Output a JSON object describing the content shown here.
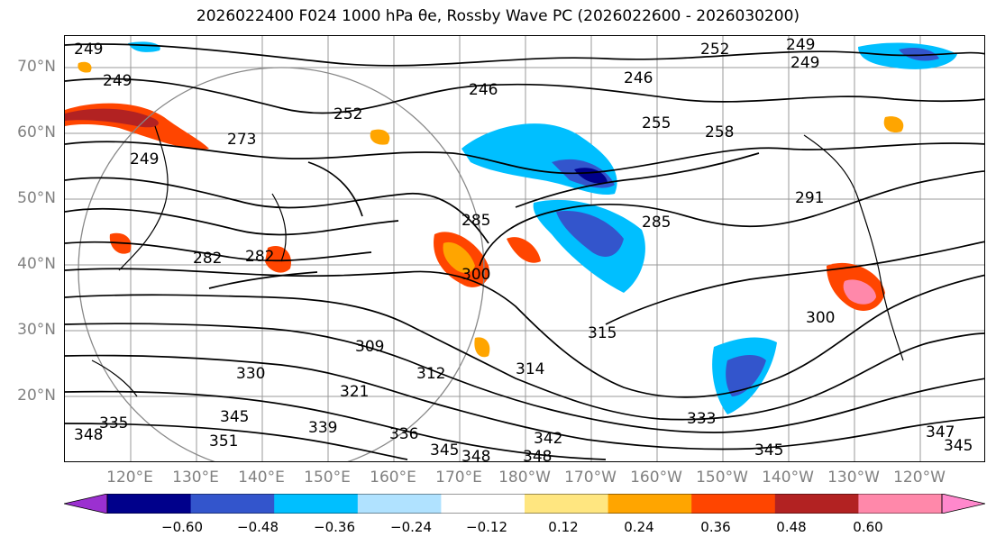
{
  "title": "2026022400 F024 1000 hPa θe, Rossby Wave PC (2026022600 - 2026030200)",
  "map": {
    "lat_labels": [
      "70°N",
      "60°N",
      "50°N",
      "40°N",
      "30°N",
      "20°N"
    ],
    "lon_labels": [
      "120°E",
      "130°E",
      "140°E",
      "150°E",
      "160°E",
      "170°E",
      "180°W",
      "170°W",
      "160°W",
      "150°W",
      "140°W",
      "130°W",
      "120°W"
    ],
    "contour_labels": [
      "249",
      "252",
      "249",
      "249",
      "246",
      "246",
      "249",
      "255",
      "252",
      "258",
      "249",
      "273",
      "282",
      "291",
      "285",
      "285",
      "300",
      "282",
      "309",
      "312",
      "315",
      "314",
      "321",
      "330",
      "345",
      "339",
      "336",
      "351",
      "345",
      "348",
      "348",
      "342",
      "333",
      "345",
      "345",
      "347",
      "335",
      "348",
      "300"
    ]
  },
  "colorbar": {
    "ticks": [
      "−0.60",
      "−0.48",
      "−0.36",
      "−0.24",
      "−0.12",
      "0.12",
      "0.24",
      "0.36",
      "0.48",
      "0.60"
    ],
    "colors": [
      "#9b30d0",
      "#00008b",
      "#3355cc",
      "#00bfff",
      "#b0e2ff",
      "#ffffff",
      "#ffe680",
      "#ffa500",
      "#ff4500",
      "#b22222",
      "#ff88aa",
      "#ff88cc"
    ]
  }
}
